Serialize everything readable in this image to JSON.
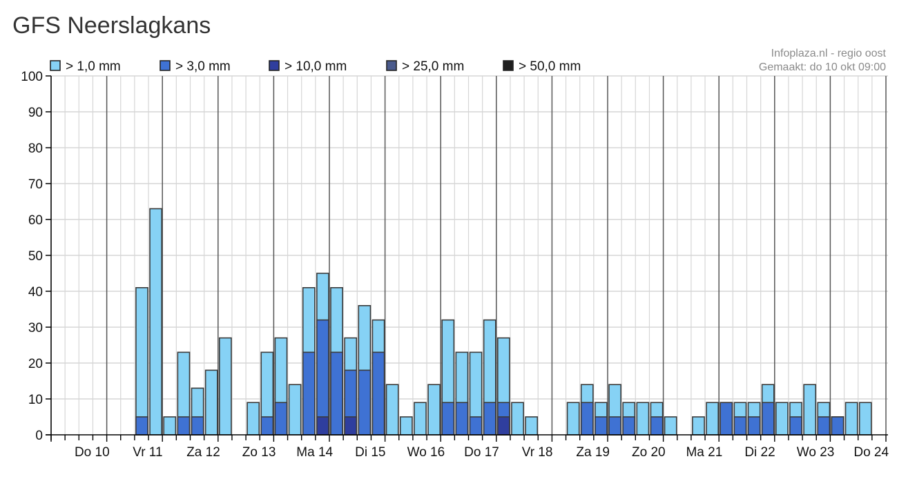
{
  "page": {
    "title": "GFS Neerslagkans"
  },
  "credits": {
    "line1": "Infoplaza.nl - regio oost",
    "line2": "Gemaakt: do 10 okt 09:00"
  },
  "chart_data": {
    "type": "bar",
    "title": "GFS Neerslagkans",
    "xlabel": "",
    "ylabel": "",
    "ylim": [
      0,
      100
    ],
    "yticks": [
      0,
      10,
      20,
      30,
      40,
      50,
      60,
      70,
      80,
      90,
      100
    ],
    "grid": true,
    "legend_position": "top",
    "day_labels": [
      "Do 10",
      "Vr 11",
      "Za 12",
      "Zo 13",
      "Ma 14",
      "Di 15",
      "Wo 16",
      "Do 17",
      "Vr 18",
      "Za 19",
      "Zo 20",
      "Ma 21",
      "Di 22",
      "Wo 23",
      "Do 24"
    ],
    "periods_per_day": 4,
    "series": [
      {
        "name": "> 1,0 mm",
        "color": "#86d2f5",
        "values": [
          0,
          0,
          0,
          0,
          0,
          0,
          41,
          63,
          5,
          23,
          13,
          18,
          27,
          0,
          9,
          23,
          27,
          14,
          41,
          45,
          41,
          27,
          36,
          32,
          14,
          5,
          9,
          14,
          32,
          23,
          23,
          32,
          27,
          9,
          5,
          0,
          0,
          9,
          14,
          9,
          14,
          9,
          9,
          9,
          5,
          0,
          5,
          9,
          9,
          9,
          9,
          14,
          9,
          9,
          14,
          9,
          5,
          9,
          9
        ]
      },
      {
        "name": "> 3,0 mm",
        "color": "#3f72d3",
        "values": [
          0,
          0,
          0,
          0,
          0,
          0,
          5,
          0,
          0,
          5,
          5,
          0,
          0,
          0,
          0,
          5,
          9,
          0,
          23,
          32,
          23,
          18,
          18,
          23,
          0,
          0,
          0,
          0,
          9,
          9,
          5,
          9,
          9,
          0,
          0,
          0,
          0,
          0,
          9,
          5,
          5,
          5,
          0,
          5,
          0,
          0,
          0,
          0,
          9,
          5,
          5,
          9,
          0,
          5,
          0,
          5,
          5,
          0,
          0
        ]
      },
      {
        "name": "> 10,0 mm",
        "color": "#2f3e9e",
        "values": [
          0,
          0,
          0,
          0,
          0,
          0,
          0,
          0,
          0,
          0,
          0,
          0,
          0,
          0,
          0,
          0,
          0,
          0,
          0,
          5,
          0,
          5,
          0,
          0,
          0,
          0,
          0,
          0,
          0,
          0,
          0,
          0,
          5,
          0,
          0,
          0,
          0,
          0,
          0,
          0,
          0,
          0,
          0,
          0,
          0,
          0,
          0,
          0,
          0,
          0,
          0,
          0,
          0,
          0,
          0,
          0,
          0,
          0,
          0
        ]
      },
      {
        "name": "> 25,0 mm",
        "color": "#4a5a8c",
        "values": [
          0,
          0,
          0,
          0,
          0,
          0,
          0,
          0,
          0,
          0,
          0,
          0,
          0,
          0,
          0,
          0,
          0,
          0,
          0,
          0,
          0,
          0,
          0,
          0,
          0,
          0,
          0,
          0,
          0,
          0,
          0,
          0,
          0,
          0,
          0,
          0,
          0,
          0,
          0,
          0,
          0,
          0,
          0,
          0,
          0,
          0,
          0,
          0,
          0,
          0,
          0,
          0,
          0,
          0,
          0,
          0,
          0,
          0,
          0
        ]
      },
      {
        "name": "> 50,0 mm",
        "color": "#1f1f1f",
        "values": [
          0,
          0,
          0,
          0,
          0,
          0,
          0,
          0,
          0,
          0,
          0,
          0,
          0,
          0,
          0,
          0,
          0,
          0,
          0,
          0,
          0,
          0,
          0,
          0,
          0,
          0,
          0,
          0,
          0,
          0,
          0,
          0,
          0,
          0,
          0,
          0,
          0,
          0,
          0,
          0,
          0,
          0,
          0,
          0,
          0,
          0,
          0,
          0,
          0,
          0,
          0,
          0,
          0,
          0,
          0,
          0,
          0,
          0,
          0
        ]
      }
    ]
  }
}
